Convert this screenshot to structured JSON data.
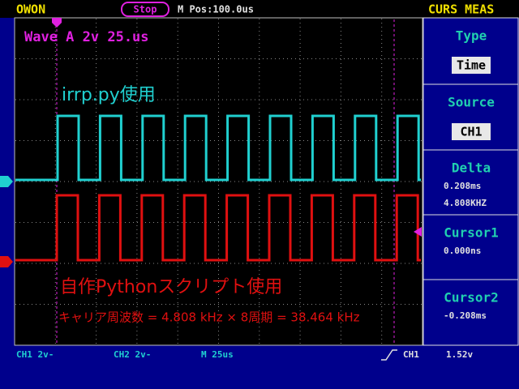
{
  "header": {
    "brand": "OWON",
    "status": "Stop",
    "position": "M Pos:100.0us",
    "menu_title": "CURS MEAS"
  },
  "screen": {
    "wave_info": "Wave A 2v 25.us",
    "annotations": [
      "irrp.py使用",
      "自作Pythonスクリプト使用",
      "キャリア周波数 = 4.808 kHz × 8周期 = 38.464 kHz"
    ]
  },
  "menu": [
    {
      "label": "Type",
      "value": "Time"
    },
    {
      "label": "Source",
      "value": "CH1"
    },
    {
      "label": "Delta",
      "values": [
        "0.208ms",
        "4.808KHZ"
      ]
    },
    {
      "label": "Cursor1",
      "values": [
        "0.000ns"
      ]
    },
    {
      "label": "Cursor2",
      "values": [
        "-0.208ms"
      ]
    }
  ],
  "footer": {
    "ch1": "CH1 2v-",
    "ch2": "CH2 2v-",
    "timebase": "M 25us",
    "trigger_source": "CH1",
    "trigger_level": "1.52v"
  }
}
